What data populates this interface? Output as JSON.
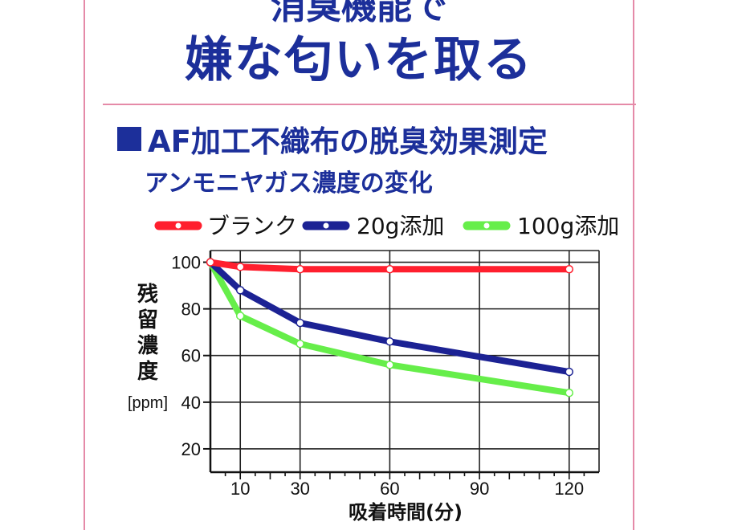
{
  "header": {
    "title_partial": "消臭機能で",
    "title_main": "嫌な匂いを取る"
  },
  "section": {
    "title": "AF加工不織布の脱臭効果測定",
    "subtitle": "アンモニヤガス濃度の変化"
  },
  "colors": {
    "accent_blue": "#1c2f9a",
    "border_pink": "#e58aa8",
    "series_blank": "#ff1f2e",
    "series_20g": "#1c2294",
    "series_100g": "#66ee4a"
  },
  "chart_data": {
    "type": "line",
    "title": "",
    "xlabel": "吸着時間(分)",
    "ylabel": "残留濃度",
    "ylabel_unit": "[ppm]",
    "xlim": [
      0,
      130
    ],
    "ylim": [
      10,
      105
    ],
    "x_ticks": [
      10,
      30,
      60,
      90,
      120
    ],
    "y_ticks": [
      20,
      40,
      60,
      80,
      100
    ],
    "grid": true,
    "legend_position": "top",
    "series": [
      {
        "name": "ブランク",
        "color": "#ff1f2e",
        "points": [
          [
            0,
            100
          ],
          [
            10,
            98
          ],
          [
            30,
            97
          ],
          [
            60,
            97
          ],
          [
            120,
            97
          ]
        ]
      },
      {
        "name": "20g添加",
        "color": "#1c2294",
        "points": [
          [
            0,
            100
          ],
          [
            10,
            88
          ],
          [
            30,
            74
          ],
          [
            60,
            66
          ],
          [
            120,
            53
          ]
        ]
      },
      {
        "name": "100g添加",
        "color": "#66ee4a",
        "points": [
          [
            0,
            100
          ],
          [
            10,
            77
          ],
          [
            30,
            65
          ],
          [
            60,
            56
          ],
          [
            120,
            44
          ]
        ]
      }
    ]
  }
}
